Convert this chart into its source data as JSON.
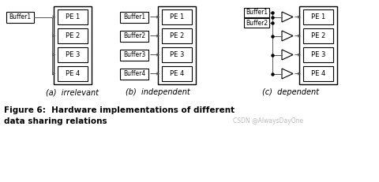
{
  "bg_color": "#ffffff",
  "fig_width": 4.8,
  "fig_height": 2.31,
  "watermark": "CSDN @AlwaysDayOne",
  "sub_labels": [
    "(a)  irrelevant",
    "(b)  independent",
    "(c)  dependent"
  ],
  "pe_labels": [
    "PE 1",
    "PE 2",
    "PE 3",
    "PE 4"
  ],
  "buffer_labels_b": [
    "Buffer1",
    "Buffer2",
    "Buffer3",
    "Buffer4"
  ],
  "buffer_labels_c": [
    "Buffer1",
    "Buffer2"
  ]
}
